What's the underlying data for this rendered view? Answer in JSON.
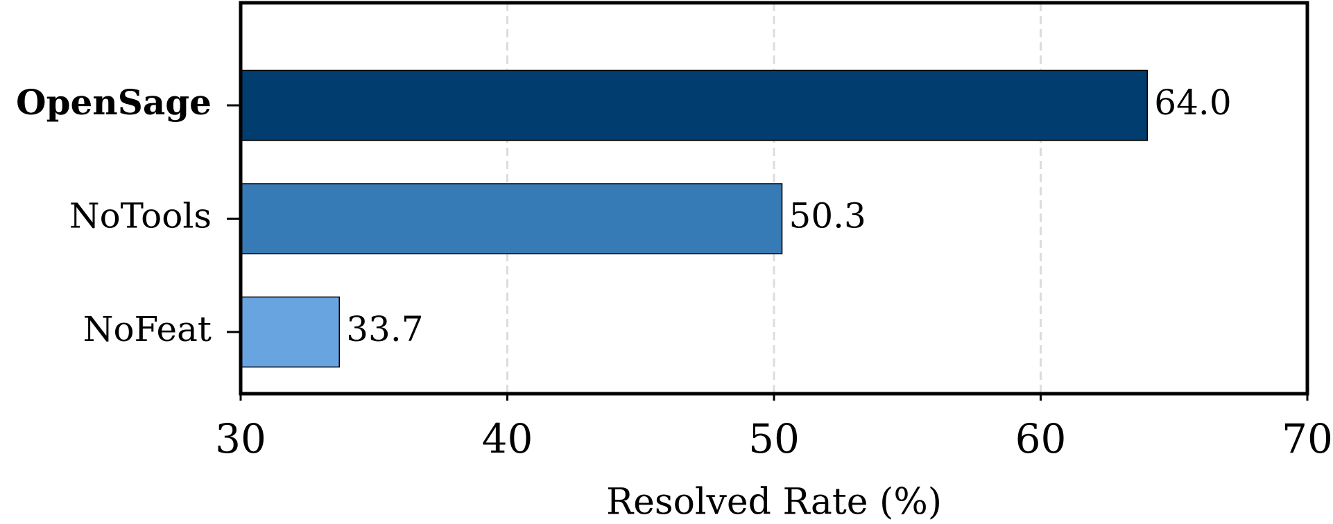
{
  "chart_data": {
    "type": "barh",
    "x_label": "Resolved Rate (%)",
    "categories": [
      "OpenSage",
      "NoTools",
      "NoFeat"
    ],
    "bold_categories": [
      true,
      false,
      false
    ],
    "values": [
      64.0,
      50.3,
      33.7
    ],
    "value_labels": [
      "64.0",
      "50.3",
      "33.7"
    ],
    "colors": [
      "#023d6f",
      "#377bb6",
      "#68a4e0"
    ],
    "xlim": [
      30,
      70
    ],
    "xticks": [
      30,
      40,
      50,
      60,
      70
    ],
    "grid": true
  }
}
